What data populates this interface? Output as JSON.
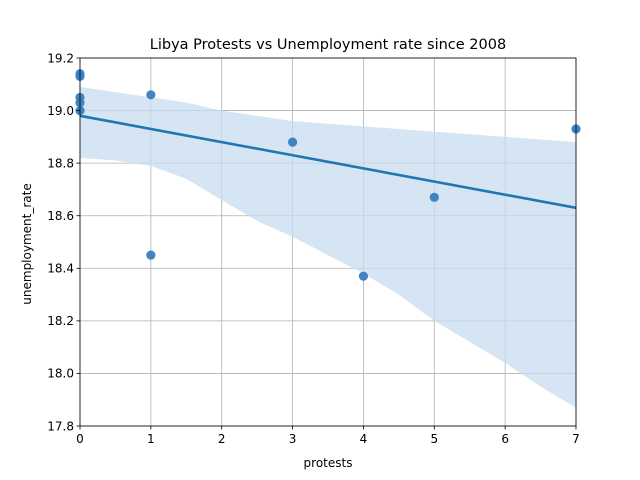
{
  "chart_data": {
    "type": "scatter",
    "title": "Libya Protests vs Unemployment rate since 2008",
    "xlabel": "protests",
    "ylabel": "unemployment_rate",
    "xlim": [
      0,
      7
    ],
    "ylim": [
      17.8,
      19.2
    ],
    "x_ticks": [
      "0",
      "1",
      "2",
      "3",
      "4",
      "5",
      "6",
      "7"
    ],
    "y_ticks": [
      "17.8",
      "18.0",
      "18.2",
      "18.4",
      "18.6",
      "18.8",
      "19.0",
      "19.2"
    ],
    "grid": true,
    "legend": "none",
    "point_color": "#3a7dbf",
    "line_color": "#1f77b4",
    "band_color": "#c8dcef",
    "points": [
      {
        "x": 0,
        "y": 19.14
      },
      {
        "x": 0,
        "y": 19.13
      },
      {
        "x": 0,
        "y": 19.05
      },
      {
        "x": 0,
        "y": 19.03
      },
      {
        "x": 0,
        "y": 19.0
      },
      {
        "x": 1,
        "y": 19.06
      },
      {
        "x": 1,
        "y": 18.45
      },
      {
        "x": 3,
        "y": 18.88
      },
      {
        "x": 4,
        "y": 18.37
      },
      {
        "x": 5,
        "y": 18.67
      },
      {
        "x": 7,
        "y": 18.93
      }
    ],
    "regression": {
      "x": [
        0,
        7
      ],
      "y": [
        18.98,
        18.63
      ]
    },
    "confidence_band": {
      "x": [
        0,
        0.5,
        1,
        1.5,
        2,
        2.5,
        3,
        3.5,
        4,
        4.5,
        5,
        5.5,
        6,
        6.5,
        7
      ],
      "upper": [
        19.09,
        19.07,
        19.05,
        19.03,
        19.0,
        18.98,
        18.96,
        18.95,
        18.94,
        18.93,
        18.92,
        18.91,
        18.9,
        18.89,
        18.88
      ],
      "lower": [
        18.82,
        18.81,
        18.79,
        18.74,
        18.66,
        18.58,
        18.52,
        18.45,
        18.38,
        18.3,
        18.2,
        18.12,
        18.04,
        17.95,
        17.87
      ]
    }
  }
}
